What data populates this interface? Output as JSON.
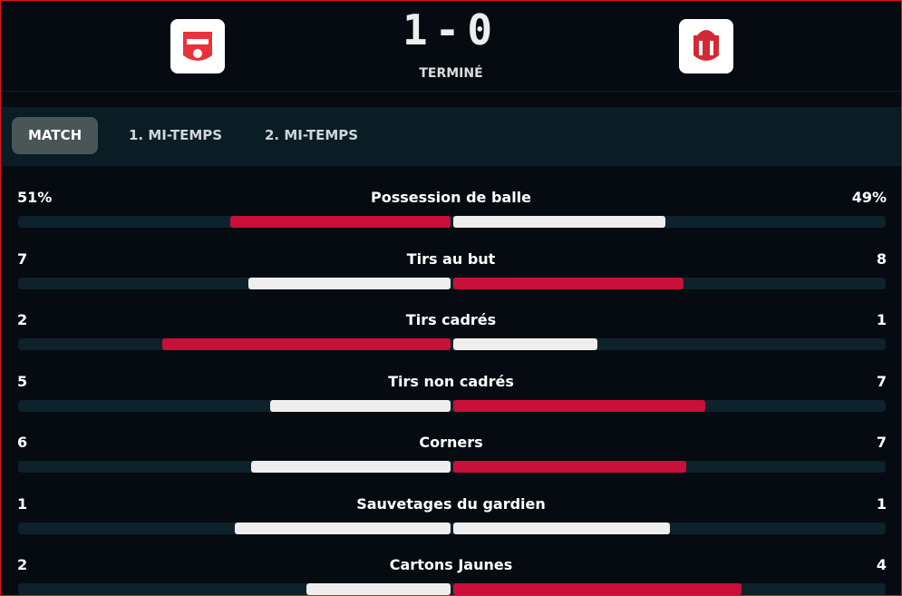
{
  "header": {
    "score": "1-0",
    "status": "TERMINÉ"
  },
  "tabs": [
    "MATCH",
    "1. MI-TEMPS",
    "2. MI-TEMPS"
  ],
  "stats": [
    {
      "label": "Possession de balle",
      "home": 51,
      "away": 49,
      "value_labels": [
        "51%",
        "49%"
      ]
    },
    {
      "label": "Tirs au but",
      "home": 7,
      "away": 8
    },
    {
      "label": "Tirs cadrés",
      "home": 2,
      "away": 1
    },
    {
      "label": "Tirs non cadrés",
      "home": 5,
      "away": 7
    },
    {
      "label": "Corners",
      "home": 6,
      "away": 7
    },
    {
      "label": "Sauvetages du gardien",
      "home": 1,
      "away": 1
    },
    {
      "label": "Cartons Jaunes",
      "home": 2,
      "away": 4
    }
  ]
}
